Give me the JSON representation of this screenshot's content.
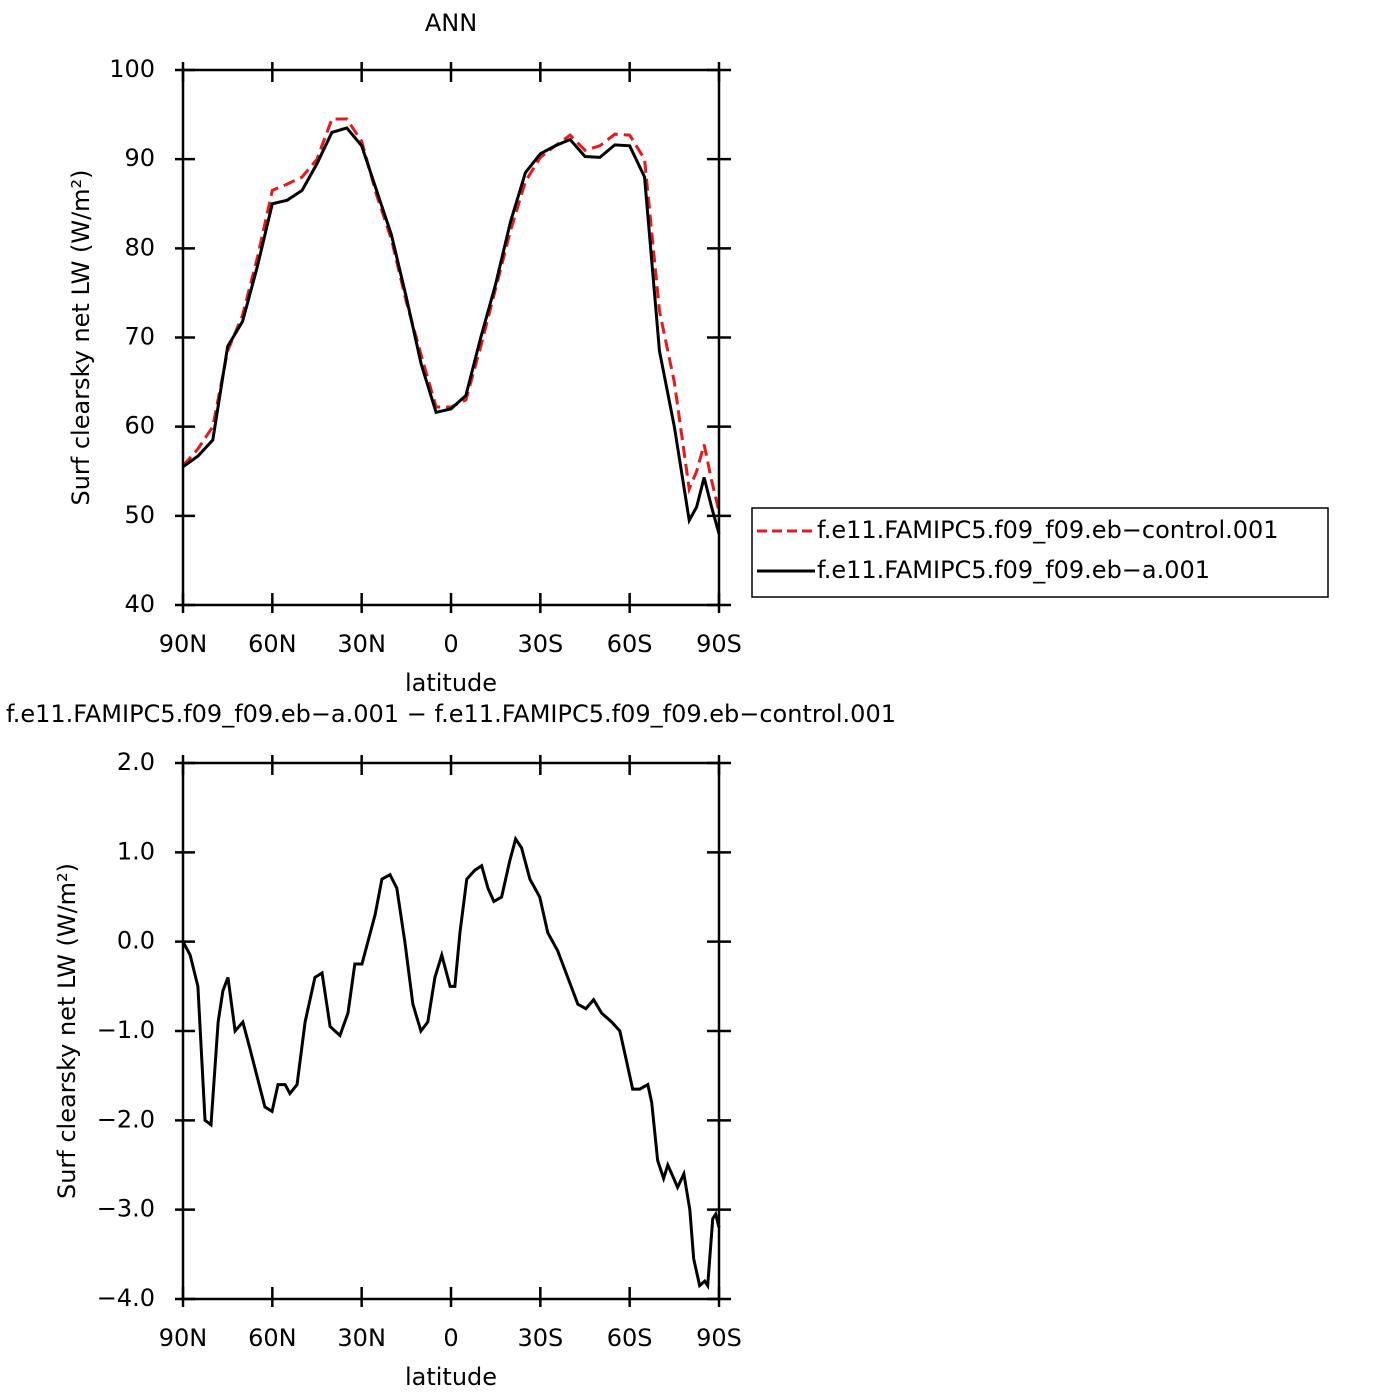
{
  "chart_data": [
    {
      "type": "line",
      "title": "ANN",
      "x_label": "latitude",
      "y_label": "Surf clearsky net LW (W/m²)",
      "x": [
        90,
        85,
        80,
        75,
        70,
        65,
        60,
        55,
        50,
        45,
        40,
        35,
        30,
        25,
        20,
        15,
        10,
        5,
        0,
        -5,
        -10,
        -15,
        -20,
        -25,
        -30,
        -35,
        -40,
        -45,
        -50,
        -55,
        -60,
        -65,
        -70,
        -75,
        -80,
        -82.5,
        -85,
        -87.5,
        -90
      ],
      "series": [
        {
          "name": "f.e11.FAMIPC5.f09_f09.eb−control.001",
          "color": "#e41a1c",
          "dash": true,
          "values": [
            55.6,
            57.5,
            60,
            68.5,
            72.5,
            79,
            86.5,
            87.2,
            88,
            90,
            94.5,
            94.5,
            92,
            86,
            81,
            74,
            68,
            62.2,
            62.2,
            63,
            69,
            75.5,
            82,
            87.5,
            90.2,
            91.5,
            92.7,
            91,
            91.5,
            92.8,
            92.7,
            90,
            73,
            65,
            53,
            55,
            58,
            54,
            50.5
          ]
        },
        {
          "name": "f.e11.FAMIPC5.f09_f09.eb−a.001",
          "color": "#000000",
          "dash": false,
          "values": [
            55.5,
            56.7,
            58.5,
            69,
            71.8,
            78,
            85,
            85.4,
            86.5,
            89.5,
            93,
            93.5,
            91.5,
            86.5,
            81.5,
            74.5,
            67,
            61.6,
            62,
            63.5,
            70,
            76,
            83,
            88.5,
            90.6,
            91.5,
            92.2,
            90.3,
            90.2,
            91.6,
            91.5,
            88,
            68.5,
            60,
            49.5,
            51,
            54.3,
            51,
            48
          ]
        }
      ],
      "xlim": [
        90,
        -90
      ],
      "xticks": [
        {
          "value": 90,
          "label": "90N"
        },
        {
          "value": 60,
          "label": "60N"
        },
        {
          "value": 30,
          "label": "30N"
        },
        0,
        {
          "value": -30,
          "label": "30S"
        },
        {
          "value": -60,
          "label": "60S"
        },
        {
          "value": -90,
          "label": "90S"
        }
      ],
      "ylim": [
        40,
        100
      ],
      "yticks": [
        40,
        50,
        60,
        70,
        80,
        90,
        100
      ],
      "legend": "right"
    },
    {
      "type": "line",
      "title": "f.e11.FAMIPC5.f09_f09.eb−a.001 − f.e11.FAMIPC5.f09_f09.eb−control.001",
      "x_label": "latitude",
      "y_label": "Surf clearsky net LW (W/m²)",
      "x": [
        90,
        87.6,
        85,
        82.6,
        80.6,
        78.2,
        76.6,
        74.9,
        72.5,
        69.9,
        67.5,
        65.2,
        62.5,
        60.1,
        58.1,
        55.7,
        54.1,
        51.7,
        49.0,
        45.7,
        43.3,
        40.6,
        37.3,
        34.6,
        32.3,
        29.9,
        27.9,
        25.5,
        23.2,
        20.5,
        18.2,
        15.5,
        12.8,
        10.1,
        7.8,
        5.4,
        3.1,
        0.3,
        -1.3,
        -3.0,
        -5.3,
        -8.0,
        -10.3,
        -12.4,
        -14.4,
        -17.0,
        -19.7,
        -21.7,
        -23.7,
        -26.5,
        -29.8,
        -32.5,
        -35.8,
        -39.2,
        -42.6,
        -45.3,
        -47.9,
        -50.6,
        -54.0,
        -56.7,
        -58.7,
        -61.0,
        -63.4,
        -66.1,
        -67.4,
        -69.4,
        -71.4,
        -72.8,
        -74.8,
        -76.1,
        -78.2,
        -80.2,
        -81.5,
        -83.5,
        -85.2,
        -86.2,
        -87.9,
        -88.9,
        -90
      ],
      "series": [
        {
          "color": "#000000",
          "dash": false,
          "values": [
            0.0,
            -0.15,
            -0.5,
            -2.0,
            -2.05,
            -0.9,
            -0.55,
            -0.4,
            -1.0,
            -0.9,
            -1.2,
            -1.5,
            -1.85,
            -1.9,
            -1.6,
            -1.6,
            -1.7,
            -1.6,
            -0.9,
            -0.4,
            -0.35,
            -0.95,
            -1.05,
            -0.8,
            -0.25,
            -0.25,
            0.0,
            0.3,
            0.7,
            0.75,
            0.6,
            0.0,
            -0.7,
            -1.0,
            -0.9,
            -0.4,
            -0.15,
            -0.5,
            -0.5,
            0.1,
            0.7,
            0.8,
            0.85,
            0.6,
            0.45,
            0.5,
            0.9,
            1.15,
            1.05,
            0.7,
            0.5,
            0.1,
            -0.1,
            -0.4,
            -0.7,
            -0.75,
            -0.65,
            -0.8,
            -0.9,
            -1.0,
            -1.3,
            -1.65,
            -1.65,
            -1.6,
            -1.8,
            -2.45,
            -2.65,
            -2.5,
            -2.65,
            -2.75,
            -2.6,
            -3.0,
            -3.55,
            -3.85,
            -3.8,
            -3.85,
            -3.1,
            -3.05,
            -3.2
          ]
        }
      ],
      "xlim": [
        90,
        -90
      ],
      "xticks": [
        {
          "value": 90,
          "label": "90N"
        },
        {
          "value": 60,
          "label": "60N"
        },
        {
          "value": 30,
          "label": "30N"
        },
        0,
        {
          "value": -30,
          "label": "30S"
        },
        {
          "value": -60,
          "label": "60S"
        },
        {
          "value": -90,
          "label": "90S"
        }
      ],
      "ylim": [
        -4,
        2
      ],
      "yticks": [
        {
          "value": -4,
          "label": "−4.0"
        },
        {
          "value": -3,
          "label": "−3.0"
        },
        {
          "value": -2,
          "label": "−2.0"
        },
        {
          "value": -1,
          "label": "−1.0"
        },
        {
          "value": 0,
          "label": "0.0"
        },
        {
          "value": 1,
          "label": "1.0"
        },
        {
          "value": 2,
          "label": "2.0"
        }
      ]
    }
  ]
}
